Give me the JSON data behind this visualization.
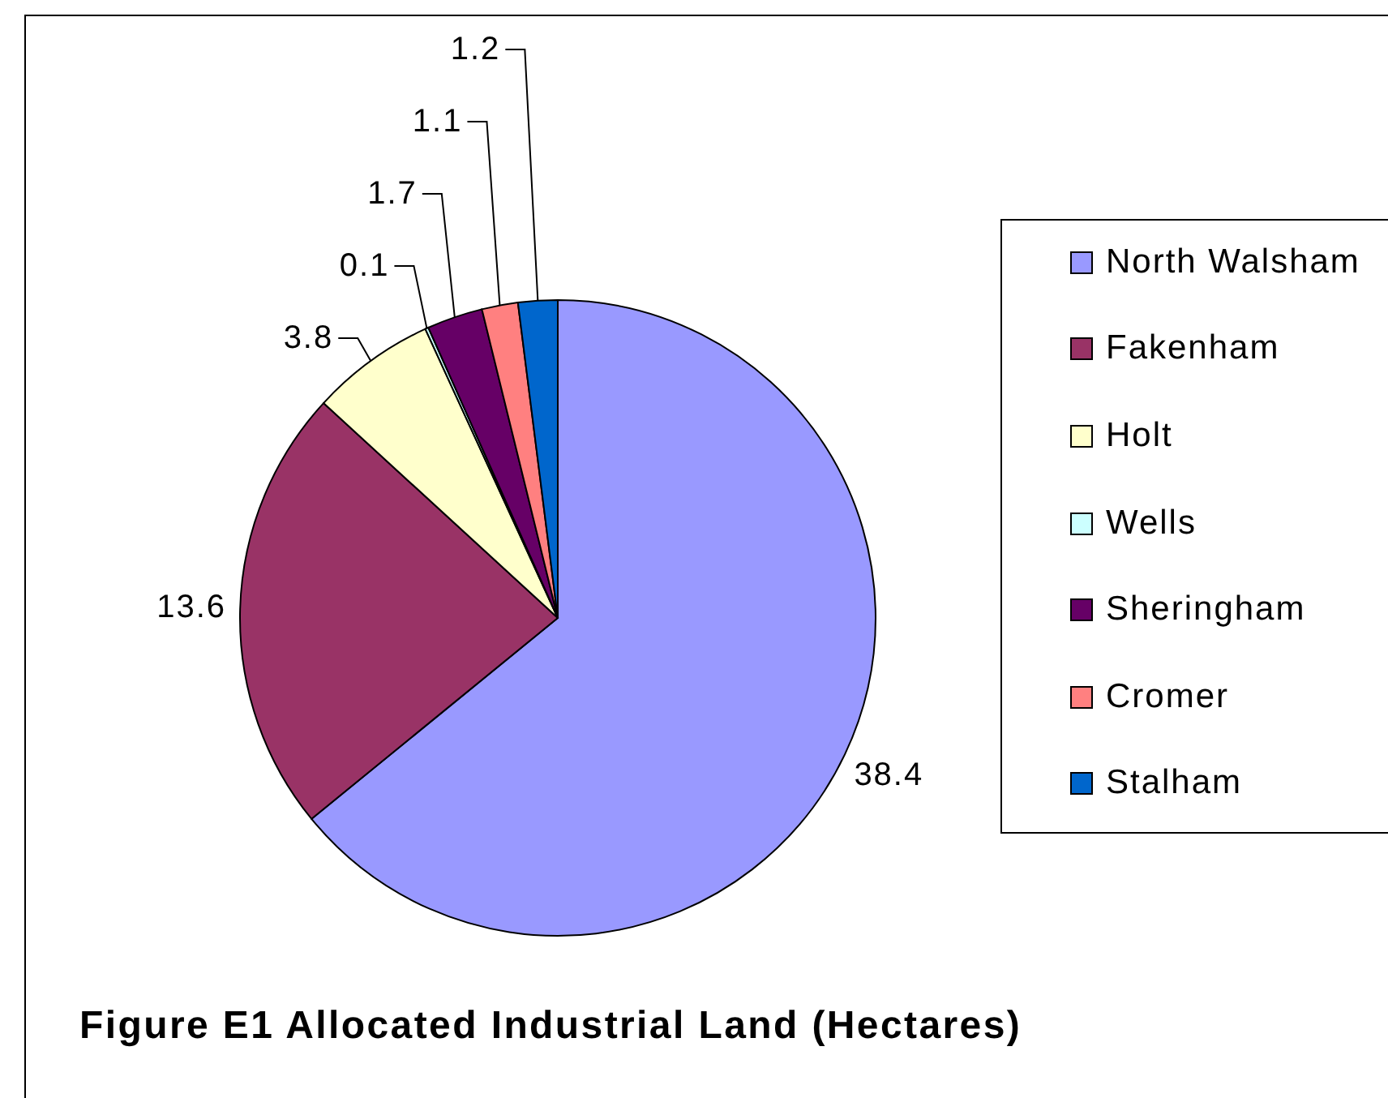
{
  "chart_data": {
    "type": "pie",
    "title": "Figure E1 Allocated Industrial Land (Hectares)",
    "categories": [
      "North Walsham",
      "Fakenham",
      "Holt",
      "Wells",
      "Sheringham",
      "Cromer",
      "Stalham"
    ],
    "values": [
      38.4,
      13.6,
      3.8,
      0.1,
      1.7,
      1.1,
      1.2
    ],
    "colors": [
      "#9999ff",
      "#993366",
      "#ffffcc",
      "#ccffff",
      "#660066",
      "#ff8080",
      "#0066cc"
    ],
    "data_labels": true,
    "legend": "right"
  }
}
